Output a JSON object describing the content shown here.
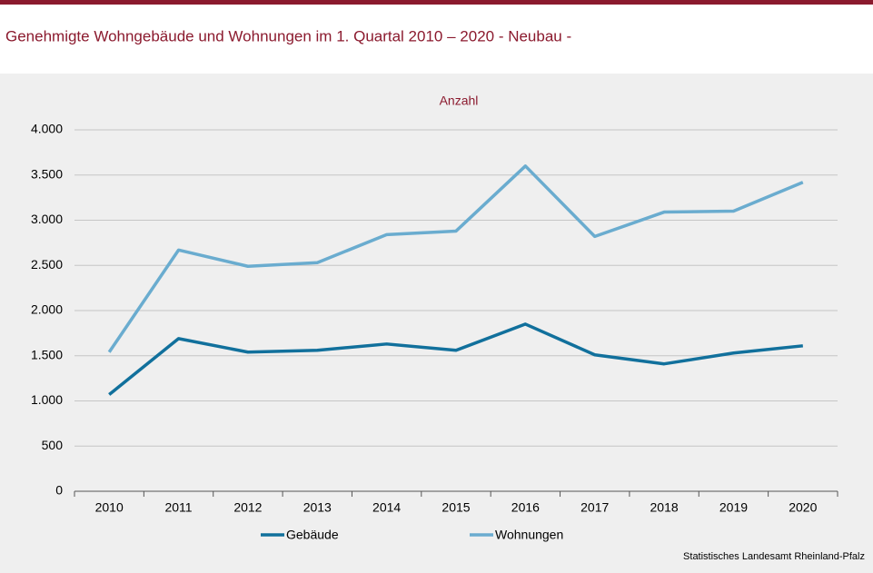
{
  "chart_data": {
    "type": "line",
    "title": "Genehmigte Wohngebäude und Wohnungen im 1. Quartal 2010 – 2020 - Neubau -",
    "y_label": "Anzahl",
    "source": "Statistisches Landesamt Rheinland-Pfalz",
    "categories": [
      "2010",
      "2011",
      "2012",
      "2013",
      "2014",
      "2015",
      "2016",
      "2017",
      "2018",
      "2019",
      "2020"
    ],
    "series": [
      {
        "name": "Gebäude",
        "color": "#11709c",
        "values": [
          1070,
          1690,
          1540,
          1560,
          1630,
          1560,
          1850,
          1510,
          1410,
          1530,
          1610
        ]
      },
      {
        "name": "Wohnungen",
        "color": "#6aaccf",
        "values": [
          1540,
          2670,
          2490,
          2530,
          2840,
          2880,
          3600,
          2820,
          3090,
          3100,
          3420
        ]
      }
    ],
    "ylim": [
      0,
      4000
    ],
    "yticks": [
      0,
      500,
      {
        "value": 1000,
        "label": "1.000"
      },
      {
        "value": 1500,
        "label": "1.500"
      },
      {
        "value": 2000,
        "label": "2.000"
      },
      {
        "value": 2500,
        "label": "2.500"
      },
      {
        "value": 3000,
        "label": "3.000"
      },
      {
        "value": 3500,
        "label": "3.500"
      },
      {
        "value": 4000,
        "label": "4.000"
      }
    ],
    "grid": true
  }
}
